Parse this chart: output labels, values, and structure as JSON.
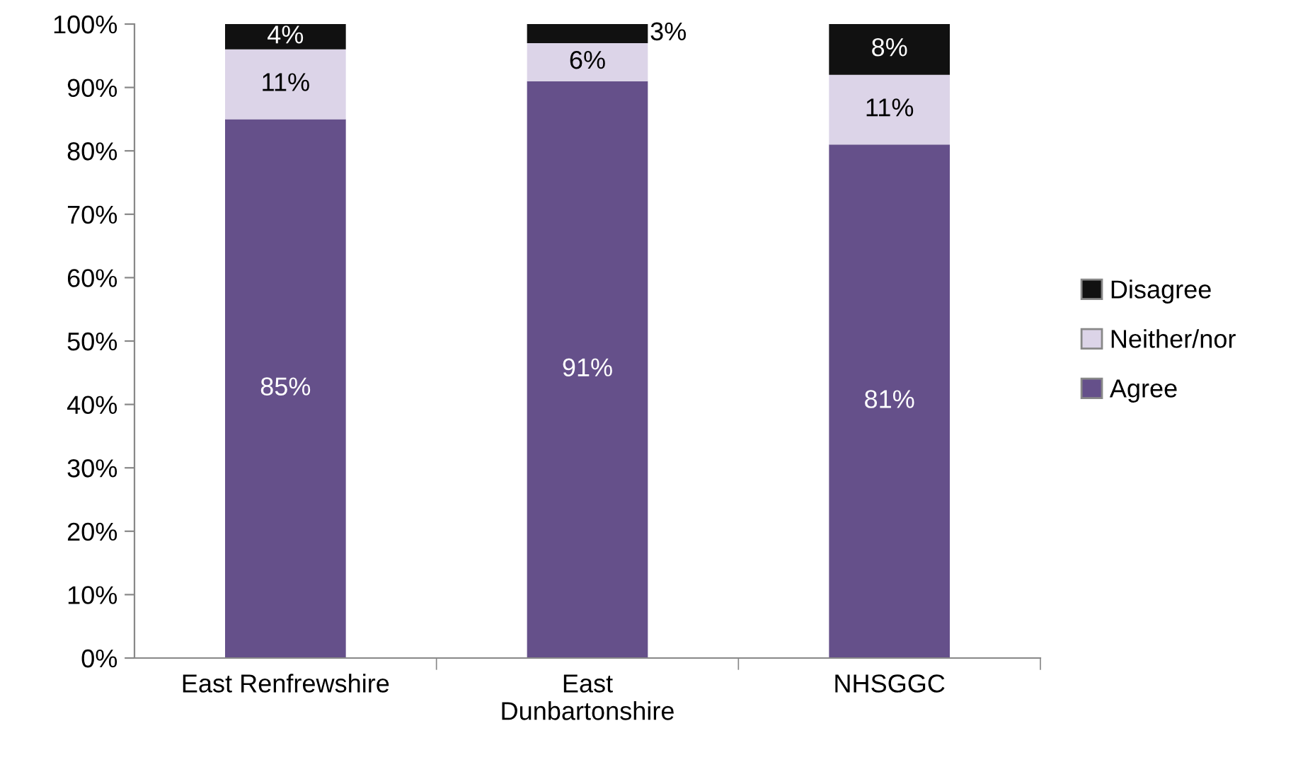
{
  "chart_data": {
    "type": "bar",
    "stacked": true,
    "categories": [
      "East Renfrewshire",
      "East Dunbartonshire",
      "NHSGGC"
    ],
    "series": [
      {
        "name": "Agree",
        "color": "#65508a",
        "values": [
          85,
          91,
          81
        ],
        "value_labels": [
          "85%",
          "91%",
          "81%"
        ]
      },
      {
        "name": "Neither/nor",
        "color": "#dcd4e8",
        "values": [
          11,
          6,
          11
        ],
        "value_labels": [
          "11%",
          "6%",
          "11%"
        ]
      },
      {
        "name": "Disagree",
        "color": "#111111",
        "values": [
          4,
          3,
          8
        ],
        "value_labels": [
          "4%",
          "3%",
          "8%"
        ]
      }
    ],
    "ylim": [
      0,
      100
    ],
    "yticks": [
      {
        "value": 0,
        "label": "0%"
      },
      {
        "value": 10,
        "label": "10%"
      },
      {
        "value": 20,
        "label": "20%"
      },
      {
        "value": 30,
        "label": "30%"
      },
      {
        "value": 40,
        "label": "40%"
      },
      {
        "value": 50,
        "label": "50%"
      },
      {
        "value": 60,
        "label": "60%"
      },
      {
        "value": 70,
        "label": "70%"
      },
      {
        "value": 80,
        "label": "80%"
      },
      {
        "value": 90,
        "label": "90%"
      },
      {
        "value": 100,
        "label": "100%"
      }
    ],
    "grid": false,
    "legend": "right"
  }
}
